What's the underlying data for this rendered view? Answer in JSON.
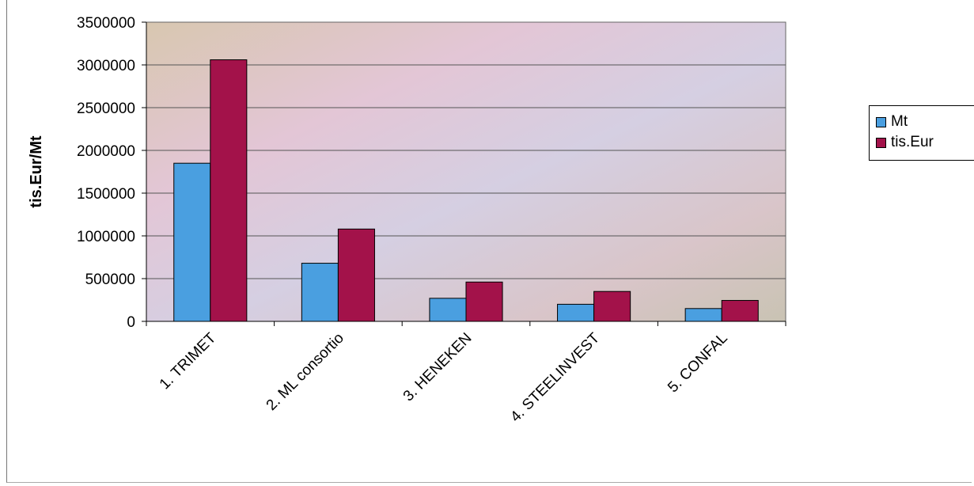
{
  "chart_data": {
    "type": "bar",
    "title": "",
    "xlabel": "",
    "ylabel": "tis.Eur/Mt",
    "ylim": [
      0,
      3500000
    ],
    "yticks": [
      0,
      500000,
      1000000,
      1500000,
      2000000,
      2500000,
      3000000,
      3500000
    ],
    "grid": true,
    "legend_position": "right",
    "categories": [
      "1. TRIMET",
      "2. ML consortio",
      "3. HENEKEN",
      "4. STEELINVEST",
      "5. CONFAL"
    ],
    "series": [
      {
        "name": "Mt",
        "color": "#4a9fe0",
        "values": [
          1850000,
          680000,
          270000,
          200000,
          150000
        ]
      },
      {
        "name": "tis.Eur",
        "color": "#a3124a",
        "values": [
          3060000,
          1080000,
          460000,
          350000,
          245000
        ]
      }
    ]
  }
}
